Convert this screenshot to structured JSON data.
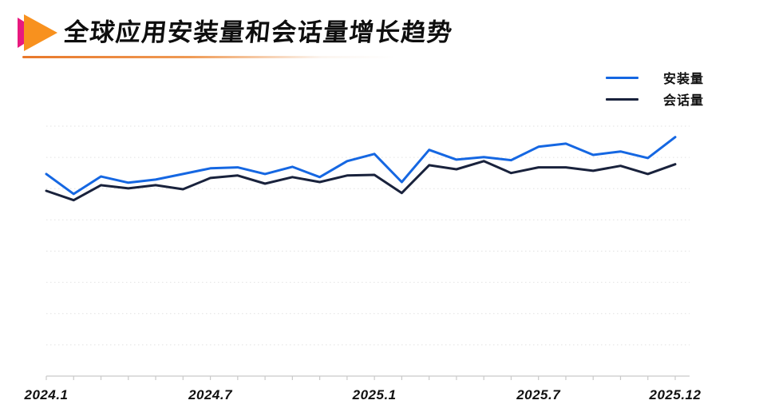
{
  "header": {
    "title": "全球应用安装量和会话量增长趋势",
    "marker_pink_color": "#e8197f",
    "marker_orange_color": "#f8911e",
    "underline_color": "#e8782a"
  },
  "chart_data": {
    "type": "line",
    "title": "全球应用安装量和会话量增长趋势",
    "x": [
      "2024.1",
      "2024.2",
      "2024.3",
      "2024.4",
      "2024.5",
      "2024.6",
      "2024.7",
      "2024.8",
      "2024.9",
      "2024.10",
      "2024.11",
      "2024.12",
      "2025.1",
      "2025.2",
      "2025.3",
      "2025.4",
      "2025.5",
      "2025.6",
      "2025.7",
      "2025.8",
      "2025.9",
      "2025.10",
      "2025.11",
      "2025.12"
    ],
    "x_tick_labels": [
      "2024.1",
      "2024.7",
      "2025.1",
      "2025.7",
      "2025.12"
    ],
    "x_tick_indices": [
      0,
      6,
      12,
      18,
      23
    ],
    "series": [
      {
        "name": "安装量",
        "color": "#1567e2",
        "values": [
          6.47,
          5.83,
          6.39,
          6.19,
          6.29,
          6.47,
          6.65,
          6.68,
          6.47,
          6.7,
          6.37,
          6.88,
          7.11,
          6.21,
          7.24,
          6.93,
          7.01,
          6.91,
          7.34,
          7.44,
          7.08,
          7.19,
          6.98,
          7.65
        ]
      },
      {
        "name": "会话量",
        "color": "#19223c",
        "values": [
          5.93,
          5.63,
          6.11,
          6.01,
          6.11,
          5.98,
          6.34,
          6.42,
          6.16,
          6.37,
          6.21,
          6.42,
          6.44,
          5.86,
          6.75,
          6.62,
          6.88,
          6.5,
          6.68,
          6.68,
          6.57,
          6.73,
          6.47,
          6.78
        ]
      }
    ],
    "ylim": [
      0,
      9
    ],
    "grid_values": [
      1,
      2,
      3,
      4,
      5,
      6,
      7,
      8
    ],
    "grid_style": "dotted-horizontal",
    "y_axis_labels_visible": false,
    "legend_position": "top-right",
    "axis_color": "#c9c9c9",
    "grid_color": "#e2e2e2"
  }
}
